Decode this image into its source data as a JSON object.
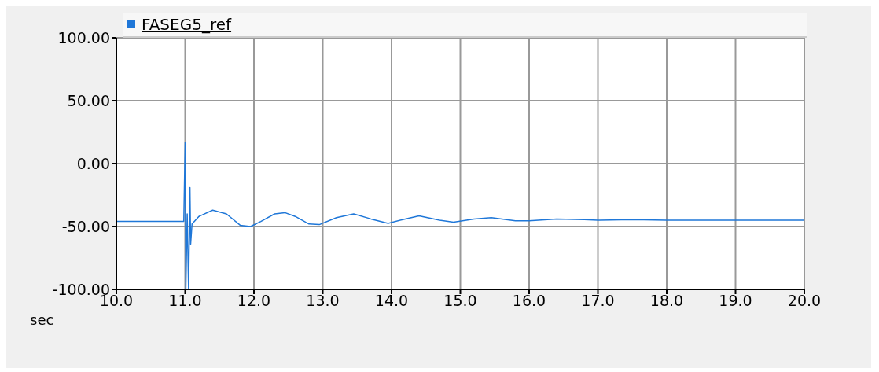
{
  "chart_data": {
    "type": "line",
    "xlabel": "sec",
    "series": [
      {
        "name": "FASEG5_ref",
        "color": "#1f77d8",
        "x": [
          10,
          10.5,
          10.98,
          11.0,
          11.01,
          11.03,
          11.05,
          11.07,
          11.08,
          11.1,
          11.2,
          11.4,
          11.6,
          11.8,
          11.95,
          12.1,
          12.3,
          12.45,
          12.6,
          12.8,
          12.95,
          13.2,
          13.45,
          13.7,
          13.95,
          14.2,
          14.4,
          14.7,
          14.9,
          15.2,
          15.45,
          15.8,
          16.0,
          16.4,
          16.8,
          17.0,
          17.5,
          18,
          19,
          20
        ],
        "values": [
          -46,
          -46,
          -46,
          17,
          -100,
          -40,
          -100,
          -19,
          -64,
          -48,
          -42,
          -37,
          -40,
          -49,
          -50,
          -46,
          -40,
          -39,
          -42,
          -48,
          -48.5,
          -43,
          -40,
          -44,
          -47.5,
          -44,
          -41.5,
          -45,
          -46.5,
          -44,
          -43,
          -45.5,
          -45.5,
          -44,
          -44.5,
          -45,
          -44.5,
          -45,
          -45,
          -45
        ]
      }
    ],
    "xlim": [
      10,
      20
    ],
    "xticks": [
      {
        "value": 10,
        "label": "10.0"
      },
      {
        "value": 11,
        "label": "11.0"
      },
      {
        "value": 12,
        "label": "12.0"
      },
      {
        "value": 13,
        "label": "13.0"
      },
      {
        "value": 14,
        "label": "14.0"
      },
      {
        "value": 15,
        "label": "15.0"
      },
      {
        "value": 16,
        "label": "16.0"
      },
      {
        "value": 17,
        "label": "17.0"
      },
      {
        "value": 18,
        "label": "18.0"
      },
      {
        "value": 19,
        "label": "19.0"
      },
      {
        "value": 20,
        "label": "20.0"
      }
    ],
    "ylim": [
      -100,
      100
    ],
    "yticks": [
      {
        "value": -100,
        "label": "-100.00"
      },
      {
        "value": -50,
        "label": "-50.00"
      },
      {
        "value": 0,
        "label": "0.00"
      },
      {
        "value": 50,
        "label": "50.00"
      },
      {
        "value": 100,
        "label": "100.00"
      }
    ],
    "grid": true,
    "legend": "top left",
    "marker": "none",
    "line_style": "solid"
  }
}
